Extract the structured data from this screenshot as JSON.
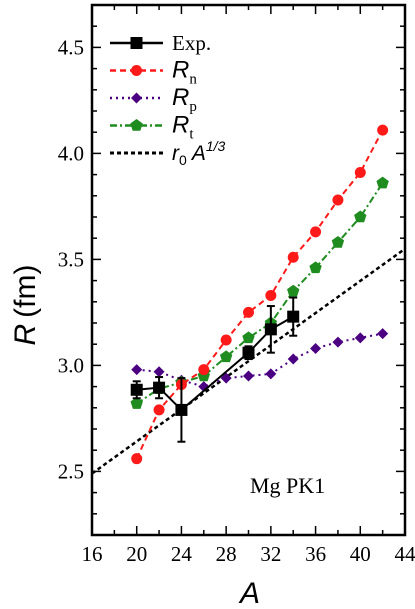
{
  "chart_data": {
    "type": "line",
    "xlabel": "A",
    "ylabel": {
      "symbol": "R",
      "unit": "(fm)"
    },
    "xlim": [
      16,
      44
    ],
    "ylim": [
      2.2,
      4.7
    ],
    "x_ticks": [
      16,
      20,
      24,
      28,
      32,
      36,
      40,
      44
    ],
    "y_ticks": [
      2.5,
      3.0,
      3.5,
      4.0,
      4.5
    ],
    "y_tick_labels": [
      "2.5",
      "3.0",
      "3.5",
      "4.0",
      "4.5"
    ],
    "annotation": "Mg  PK1",
    "legend_position": "top-left",
    "series": [
      {
        "key": "exp",
        "legend": {
          "main": "Exp.",
          "sub": ""
        },
        "color": "#000000",
        "marker": "square",
        "line": "solid",
        "x": [
          20,
          22,
          24,
          30,
          32,
          34
        ],
        "y": [
          2.885,
          2.895,
          2.79,
          3.06,
          3.17,
          3.23
        ],
        "err": [
          0.04,
          0.05,
          0.15,
          0.03,
          0.11,
          0.09
        ]
      },
      {
        "key": "rn",
        "legend": {
          "main": "R",
          "sub": "n"
        },
        "color": "#ff1a1a",
        "marker": "circle",
        "line": "dashed",
        "x": [
          20,
          22,
          24,
          26,
          28,
          30,
          32,
          34,
          36,
          38,
          40,
          42
        ],
        "y": [
          2.56,
          2.79,
          2.91,
          2.98,
          3.12,
          3.25,
          3.33,
          3.51,
          3.63,
          3.78,
          3.91,
          4.11
        ]
      },
      {
        "key": "rp",
        "legend": {
          "main": "R",
          "sub": "p"
        },
        "color": "#4b0082",
        "marker": "diamond",
        "line": "dotted",
        "x": [
          20,
          22,
          24,
          26,
          28,
          30,
          32,
          34,
          36,
          38,
          40,
          42
        ],
        "y": [
          2.98,
          2.97,
          2.93,
          2.9,
          2.94,
          2.95,
          2.96,
          3.03,
          3.08,
          3.11,
          3.13,
          3.15
        ]
      },
      {
        "key": "rt",
        "legend": {
          "main": "R",
          "sub": "t"
        },
        "color": "#1f8c1f",
        "marker": "pentagon",
        "line": "dashdot",
        "x": [
          20,
          22,
          24,
          26,
          28,
          30,
          32,
          34,
          36,
          38,
          40,
          42
        ],
        "y": [
          2.82,
          2.89,
          2.92,
          2.95,
          3.04,
          3.13,
          3.2,
          3.35,
          3.46,
          3.58,
          3.7,
          3.86
        ]
      },
      {
        "key": "r0",
        "legend": {
          "main": "r",
          "sub": "0",
          "tail": " A",
          "sup": "1/3"
        },
        "color": "#000000",
        "marker": "none",
        "line": "short-dash",
        "x": [
          16,
          44
        ],
        "y": [
          2.49,
          3.55
        ]
      }
    ]
  }
}
